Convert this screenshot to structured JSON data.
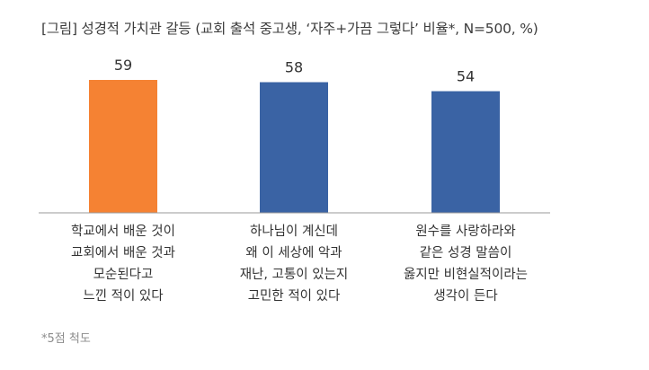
{
  "title": "[그림] 성경적 가치관 갈등 (교회 출석 중고생, ‘자주+가끔 그렇다’ 비율*, N=500, %)",
  "footnote": "*5점 척도",
  "chart_data": {
    "type": "bar",
    "title": "[그림] 성경적 가치관 갈등 (교회 출석 중고생, ‘자주+가끔 그렇다’ 비율*, N=500, %)",
    "categories": [
      [
        "학교에서 배운 것이",
        "교회에서 배운 것과",
        "모순된다고",
        "느낀 적이 있다"
      ],
      [
        "하나님이 계신데",
        "왜 이 세상에 악과",
        "재난, 고통이 있는지",
        "고민한 적이 있다"
      ],
      [
        "원수를 사랑하라와",
        "같은 성경 말씀이",
        "옳지만 비현실적이라는",
        "생각이 든다"
      ]
    ],
    "values": [
      59,
      58,
      54
    ],
    "colors": [
      "#F58233",
      "#3A63A4",
      "#3A63A4"
    ],
    "ylim": [
      0,
      59
    ],
    "grid": false,
    "legend": "none"
  }
}
